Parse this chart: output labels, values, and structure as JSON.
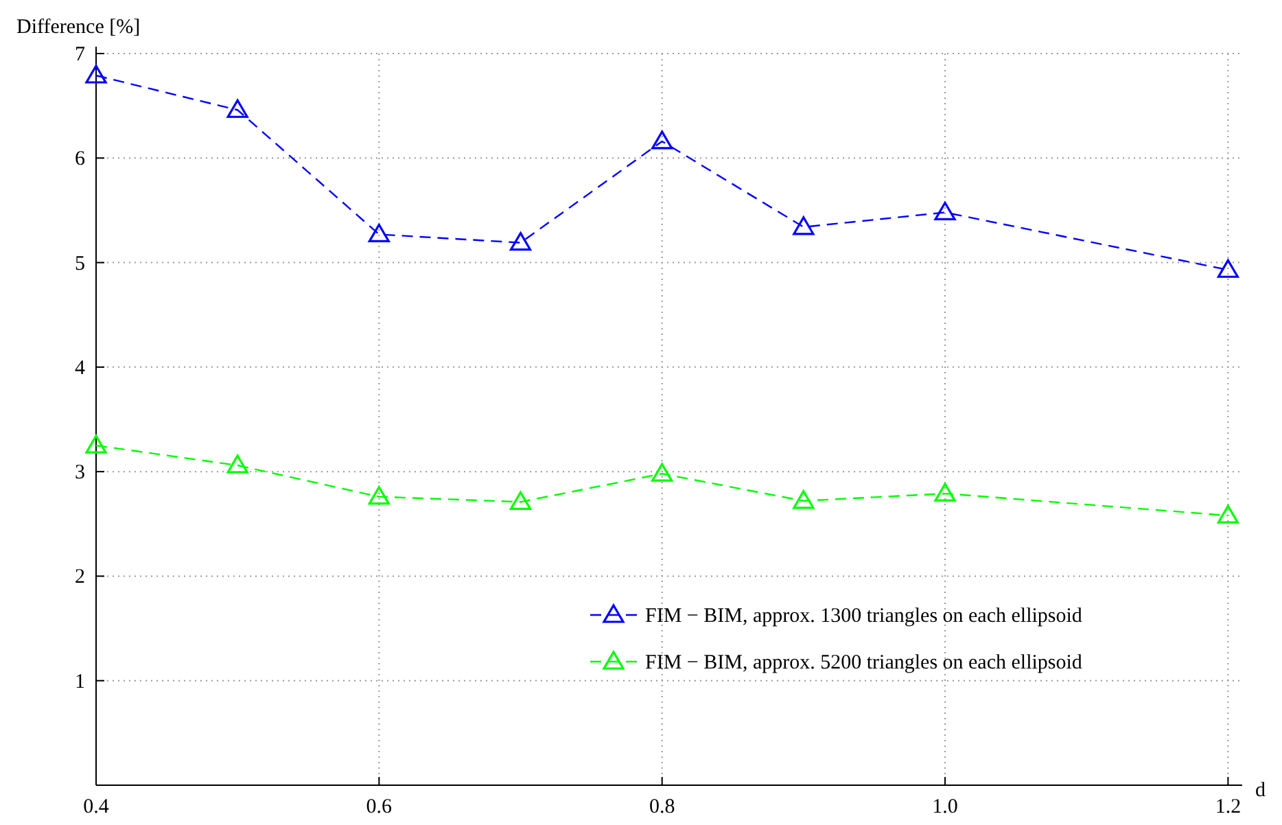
{
  "chart_data": {
    "type": "line",
    "xlabel": "d",
    "ylabel": "Difference [%]",
    "x": [
      0.4,
      0.5,
      0.6,
      0.7,
      0.8,
      0.9,
      1.0,
      1.2
    ],
    "series": [
      {
        "name": "FIM − BIM, approx. 1300 triangles on each ellipsoid",
        "color": "#0000ff",
        "values": [
          6.79,
          6.46,
          5.27,
          5.19,
          6.16,
          5.34,
          5.48,
          4.93
        ]
      },
      {
        "name": "FIM − BIM, approx. 5200 triangles on each ellipsoid",
        "color": "#00ff00",
        "values": [
          3.25,
          3.06,
          2.76,
          2.71,
          2.98,
          2.72,
          2.79,
          2.58
        ]
      }
    ],
    "xlim": [
      0.4,
      1.21
    ],
    "xticks": [
      0.4,
      0.6,
      0.8,
      {
        "value": 1,
        "label": "1.0"
      },
      1.2
    ],
    "ylim": [
      0,
      7
    ],
    "yticks": [
      1,
      2,
      3,
      4,
      5,
      6,
      7
    ],
    "grid": true,
    "legend": "bottom right",
    "marker": "triangle",
    "line_style": "dashed"
  }
}
